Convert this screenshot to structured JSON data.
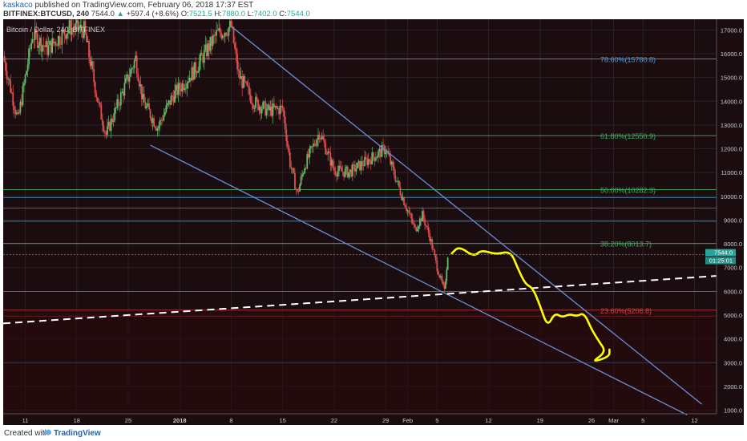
{
  "header": {
    "author": "kaskaco",
    "published_text": "published on TradingView.com, February 06, 2018 17:37 EST",
    "symbol": "BITFINEX:BTCUSD, 240",
    "last": "7544.0",
    "change": "+597.4 (+8.6%)",
    "o_label": "O:",
    "o_value": "7521.5",
    "h_label": "H:",
    "h_value": "7880.0",
    "l_label": "L:",
    "l_value": "7402.0",
    "c_label": "C:",
    "c_value": "7544.0"
  },
  "footer": {
    "created_with": "Created with",
    "brand": "TradingView"
  },
  "chart_data": {
    "type": "candlestick",
    "title": "Bitcoin / Dollar, 240, BITFINEX",
    "y_axis": {
      "ticks": [
        1000,
        2000,
        3000,
        4000,
        5000,
        6000,
        7000,
        8000,
        9000,
        10000,
        11000,
        12000,
        13000,
        14000,
        15000,
        16000,
        17000
      ],
      "tick_labels": [
        "1000.0",
        "2000.0",
        "3000.0",
        "4000.0",
        "5000.0",
        "6000.0",
        "7000.0",
        "8000.0",
        "9000.0",
        "10000.0",
        "11000.0",
        "12000.0",
        "13000.0",
        "14000.0",
        "15000.0",
        "16000.0",
        "17000.0"
      ],
      "range": [
        850,
        17450
      ]
    },
    "x_axis": {
      "range": [
        "2017-12-08",
        "2018-03-15"
      ],
      "ticks": [
        {
          "date": "2017-12-11",
          "label": "11"
        },
        {
          "date": "2017-12-18",
          "label": "18"
        },
        {
          "date": "2017-12-25",
          "label": "25"
        },
        {
          "date": "2018-01-01",
          "label": "2018"
        },
        {
          "date": "2018-01-08",
          "label": "8"
        },
        {
          "date": "2018-01-15",
          "label": "15"
        },
        {
          "date": "2018-01-22",
          "label": "22"
        },
        {
          "date": "2018-01-29",
          "label": "29"
        },
        {
          "date": "2018-02-01",
          "label": "Feb"
        },
        {
          "date": "2018-02-05",
          "label": "5"
        },
        {
          "date": "2018-02-12",
          "label": "12"
        },
        {
          "date": "2018-02-19",
          "label": "19"
        },
        {
          "date": "2018-02-26",
          "label": "26"
        },
        {
          "date": "2018-03-01",
          "label": "Mar"
        },
        {
          "date": "2018-03-05",
          "label": "5"
        },
        {
          "date": "2018-03-12",
          "label": "12"
        }
      ]
    },
    "price_path": [
      {
        "date": "2017-12-08",
        "price": 15900
      },
      {
        "date": "2017-12-10",
        "price": 13200
      },
      {
        "date": "2017-12-12",
        "price": 16800
      },
      {
        "date": "2017-12-14",
        "price": 16200
      },
      {
        "date": "2017-12-17",
        "price": 17100
      },
      {
        "date": "2017-12-19",
        "price": 17000
      },
      {
        "date": "2017-12-21",
        "price": 13800
      },
      {
        "date": "2017-12-22",
        "price": 12600
      },
      {
        "date": "2017-12-24",
        "price": 14200
      },
      {
        "date": "2017-12-26",
        "price": 15800
      },
      {
        "date": "2017-12-27",
        "price": 14000
      },
      {
        "date": "2017-12-29",
        "price": 12900
      },
      {
        "date": "2017-12-31",
        "price": 14200
      },
      {
        "date": "2018-01-03",
        "price": 15300
      },
      {
        "date": "2018-01-06",
        "price": 16800
      },
      {
        "date": "2018-01-08",
        "price": 17150
      },
      {
        "date": "2018-01-09",
        "price": 15100
      },
      {
        "date": "2018-01-11",
        "price": 14000
      },
      {
        "date": "2018-01-13",
        "price": 13600
      },
      {
        "date": "2018-01-15",
        "price": 13700
      },
      {
        "date": "2018-01-16",
        "price": 11400
      },
      {
        "date": "2018-01-17",
        "price": 10100
      },
      {
        "date": "2018-01-18",
        "price": 11300
      },
      {
        "date": "2018-01-20",
        "price": 12700
      },
      {
        "date": "2018-01-22",
        "price": 11100
      },
      {
        "date": "2018-01-24",
        "price": 11000
      },
      {
        "date": "2018-01-26",
        "price": 11400
      },
      {
        "date": "2018-01-28",
        "price": 11800
      },
      {
        "date": "2018-01-29",
        "price": 12000
      },
      {
        "date": "2018-01-30",
        "price": 11100
      },
      {
        "date": "2018-01-31",
        "price": 10200
      },
      {
        "date": "2018-02-01",
        "price": 9400
      },
      {
        "date": "2018-02-02",
        "price": 8600
      },
      {
        "date": "2018-02-03",
        "price": 9200
      },
      {
        "date": "2018-02-04",
        "price": 8300
      },
      {
        "date": "2018-02-05",
        "price": 7000
      },
      {
        "date": "2018-02-06",
        "price": 6000
      },
      {
        "date": "2018-02-06",
        "price": 7544
      }
    ],
    "last_price": {
      "value": 7544.0,
      "label": "7544.0",
      "countdown": "01:25:01"
    },
    "fibonacci_levels": [
      {
        "label": "78.60%(15780.8)",
        "value": 15780.8,
        "color": "#4a9ad6"
      },
      {
        "label": "61.80%(12550.9)",
        "value": 12550.9,
        "color": "#3fae64"
      },
      {
        "label": "50.00%(10282.3)",
        "value": 10282.3,
        "color": "#3fae64"
      },
      {
        "label": "38.20%(8013.7)",
        "value": 8013.7,
        "color": "#3fae64"
      },
      {
        "label": "23.60%(5206.8)",
        "value": 5206.8,
        "color": "#d94040"
      }
    ],
    "horizontal_levels": [
      {
        "value": 9950,
        "color": "#4a9ad6"
      },
      {
        "value": 9500,
        "color": "#4a9ad6"
      },
      {
        "value": 8950,
        "color": "#4a9ad6"
      },
      {
        "value": 6000,
        "color": "#4a9ad6"
      },
      {
        "value": 4950,
        "color": "#d94040"
      },
      {
        "value": 3000,
        "color": "#4a9ad6"
      }
    ],
    "trend_lines": [
      {
        "name": "upper-channel",
        "from": {
          "date": "2018-01-08",
          "price": 17150
        },
        "to": {
          "date": "2018-03-13",
          "price": 1250
        },
        "color": "#6b8fd8"
      },
      {
        "name": "lower-channel",
        "from": {
          "date": "2017-12-28",
          "price": 12150
        },
        "to": {
          "date": "2018-03-11",
          "price": 800
        },
        "color": "#6b8fd8"
      },
      {
        "name": "support-dashed",
        "from": {
          "date": "2017-12-08",
          "price": 4650
        },
        "to": {
          "date": "2018-03-15",
          "price": 6650
        },
        "color": "#ffffff"
      }
    ],
    "projection_path": [
      {
        "date": "2018-02-07",
        "price": 7600
      },
      {
        "date": "2018-02-08",
        "price": 7900
      },
      {
        "date": "2018-02-10",
        "price": 7450
      },
      {
        "date": "2018-02-11",
        "price": 7750
      },
      {
        "date": "2018-02-13",
        "price": 7550
      },
      {
        "date": "2018-02-15",
        "price": 7700
      },
      {
        "date": "2018-02-16",
        "price": 6950
      },
      {
        "date": "2018-02-17",
        "price": 6300
      },
      {
        "date": "2018-02-18",
        "price": 6150
      },
      {
        "date": "2018-02-19",
        "price": 5400
      },
      {
        "date": "2018-02-20",
        "price": 4500
      },
      {
        "date": "2018-02-21",
        "price": 5100
      },
      {
        "date": "2018-02-22",
        "price": 4900
      },
      {
        "date": "2018-02-23",
        "price": 5050
      },
      {
        "date": "2018-02-24",
        "price": 4950
      },
      {
        "date": "2018-02-25",
        "price": 5100
      },
      {
        "date": "2018-02-26",
        "price": 4400
      },
      {
        "date": "2018-02-27",
        "price": 3900
      },
      {
        "date": "2018-02-28",
        "price": 3450
      },
      {
        "date": "2018-02-27",
        "price": 3000
      },
      {
        "date": "2018-02-28",
        "price": 3250
      },
      {
        "date": "2018-02-28",
        "price": 3550
      }
    ],
    "colors": {
      "background": "#1a0c0f",
      "grid": "#2e2124",
      "up_candle": "#66bb6a",
      "down_candle": "#e05050",
      "projection": "#ffff00",
      "axis_text": "#cccccc",
      "last_price_box": "#26a69a"
    }
  }
}
